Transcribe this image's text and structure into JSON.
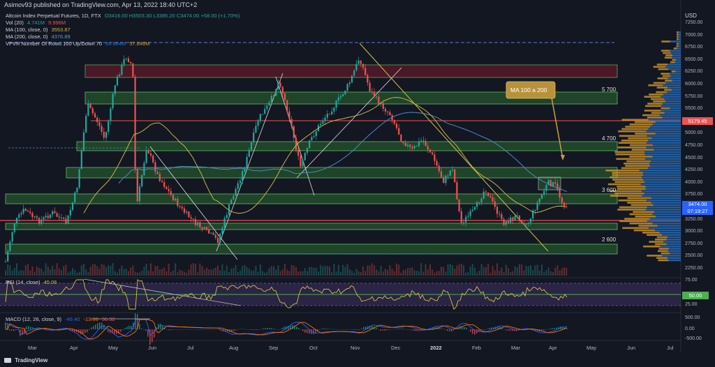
{
  "header": {
    "publisher": "Asimov93 published on TradingView.com, Apr 13, 2022 18:40 UTC+2"
  },
  "legend": {
    "symbol": "Altcoin Index Perpetual Futures, 1D, FTX",
    "ohlc": "O3416.00 H3503.30 L3385.20 C3474.00 +58.00 (+1.70%)",
    "vol_label": "Vol (20)",
    "vol_values": [
      "4.741M",
      "9.996M"
    ],
    "ma100_label": "MA (100, close, 0)",
    "ma100_value": "3553.87",
    "ma200_label": "MA (200, close, 0)",
    "ma200_value": "4376.89",
    "vpvr_label": "VPVR Number Of Rows 100 Up/Down 70",
    "vpvr_values": [
      "64.964M",
      "57.846M"
    ]
  },
  "axis": {
    "currency": "USD",
    "ticks": [
      "7250.00",
      "7000.00",
      "6750.00",
      "6500.00",
      "6250.00",
      "6000.00",
      "5750.00",
      "5500.00",
      "5250.00",
      "5000.00",
      "4750.00",
      "4500.00",
      "4250.00",
      "4000.00",
      "3750.00",
      "3500.00",
      "3250.00",
      "3000.00",
      "2750.00",
      "2500.00",
      "2250.00"
    ],
    "price_tag": "5179.45",
    "last_price": "3474.00",
    "countdown": "07:19:27"
  },
  "annotations": {
    "ma_cross": "MA 100 a 200",
    "level_5700": "5 700",
    "level_4700": "4 700",
    "level_3600": "3 600",
    "level_2600": "2 600"
  },
  "rsi": {
    "label": "RSI (14, close)",
    "value": "45.06",
    "ticks": [
      "75.00",
      "50.00",
      "25.00"
    ],
    "tag": "50.00"
  },
  "macd": {
    "label": "MACD (12, 26, close, 9)",
    "values": [
      "-49.40",
      "-13.08",
      "36.32"
    ],
    "ticks": [
      "500.00",
      "0.00",
      "-500.00"
    ]
  },
  "xaxis": [
    "Mar",
    "Apr",
    "May",
    "Jun",
    "Jul",
    "Aug",
    "Sep",
    "Oct",
    "Nov",
    "Dec",
    "2022",
    "Feb",
    "Mar",
    "Apr",
    "May",
    "Jun",
    "Jul"
  ],
  "footer": {
    "brand": "TradingView"
  },
  "colors": {
    "bg": "#131722",
    "up": "#26a69a",
    "down": "#ef5350",
    "zone_green": "#2e7d32",
    "zone_red": "#8b1a2b",
    "ma100": "#c9b24a",
    "ma200": "#5b9bd5",
    "vpvr_up": "#2a76c9",
    "vpvr_down": "#d49a2c"
  }
}
